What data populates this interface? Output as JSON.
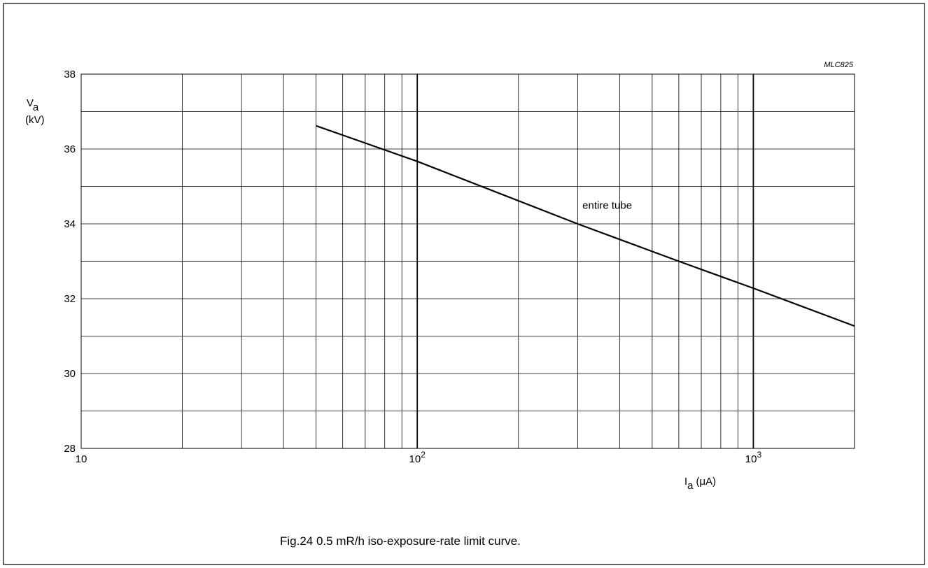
{
  "caption": "Fig.24  0.5 mR/h iso-exposure-rate limit curve.",
  "chart_data": {
    "type": "line",
    "code": "MLC825",
    "ylabel": {
      "symbol": "V",
      "subscript": "a",
      "unit": "(kV)"
    },
    "xlabel": {
      "symbol": "I",
      "subscript": "a",
      "unit": "(μA)"
    },
    "x_scale": "log",
    "xlim": [
      10,
      2000
    ],
    "ylim": [
      28,
      38
    ],
    "y_ticks": [
      28,
      30,
      32,
      34,
      36,
      38
    ],
    "x_tick_labels": [
      {
        "value": 10,
        "base": "10",
        "exp": ""
      },
      {
        "value": 100,
        "base": "10",
        "exp": "2"
      },
      {
        "value": 1000,
        "base": "10",
        "exp": "3"
      }
    ],
    "grid": true,
    "series": [
      {
        "name": "entire tube",
        "x": [
          50,
          100,
          300,
          600,
          1000,
          2000
        ],
        "y": [
          36.62,
          35.67,
          34.0,
          33.0,
          32.28,
          31.27
        ]
      }
    ]
  }
}
